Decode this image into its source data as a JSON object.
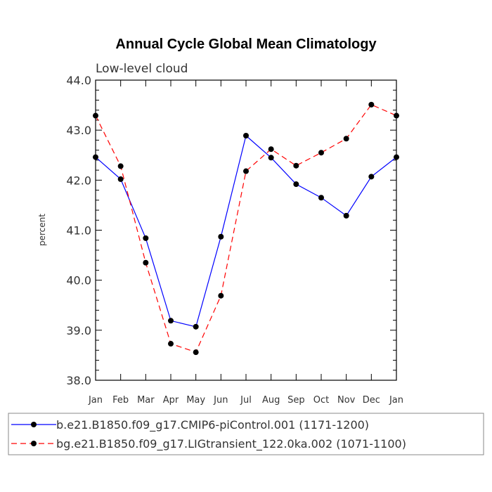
{
  "chart_data": {
    "type": "line",
    "title": "Annual Cycle Global Mean Climatology",
    "subtitle": "Low-level cloud",
    "xlabel": "",
    "ylabel": "percent",
    "categories": [
      "Jan",
      "Feb",
      "Mar",
      "Apr",
      "May",
      "Jun",
      "Jul",
      "Aug",
      "Sep",
      "Oct",
      "Nov",
      "Dec",
      "Jan"
    ],
    "ylim": [
      38.0,
      44.0
    ],
    "yticks": [
      "38.0",
      "39.0",
      "40.0",
      "41.0",
      "42.0",
      "43.0",
      "44.0"
    ],
    "series": [
      {
        "name": "b.e21.B1850.f09_g17.CMIP6-piControl.001 (1171-1200)",
        "color": "#0000ff",
        "dash": "solid",
        "values": [
          42.46,
          42.02,
          40.84,
          39.19,
          39.07,
          40.87,
          42.89,
          42.45,
          41.92,
          41.65,
          41.29,
          42.07,
          42.46
        ]
      },
      {
        "name": "bg.e21.B1850.f09_g17.LIGtransient_122.0ka.002 (1071-1100)",
        "color": "#ff0000",
        "dash": "dashed",
        "values": [
          43.29,
          42.28,
          40.35,
          38.73,
          38.56,
          39.69,
          42.18,
          42.62,
          42.29,
          42.55,
          42.83,
          43.51,
          43.29
        ]
      }
    ],
    "legend": "bottom",
    "grid": false
  }
}
